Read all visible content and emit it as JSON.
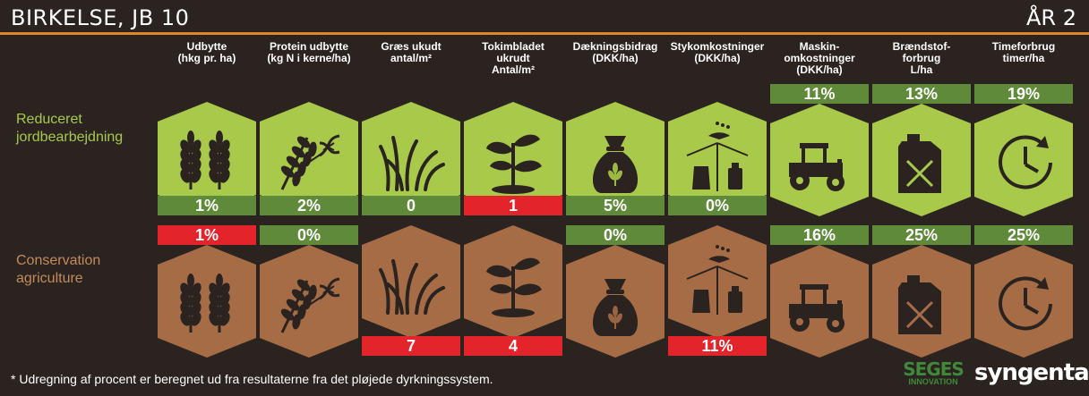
{
  "header": {
    "title": "BIRKELSE, JB 10",
    "year": "ÅR 2"
  },
  "columns": [
    {
      "l1": "Udbytte",
      "l2": "(hkg pr. ha)",
      "l3": "",
      "icon": "wheat-icon"
    },
    {
      "l1": "Protein udbytte",
      "l2": "(kg N i kerne/ha)",
      "l3": "",
      "icon": "wheat-dna-icon"
    },
    {
      "l1": "Græs ukudt",
      "l2": "antal/m²",
      "l3": "",
      "icon": "grass-icon"
    },
    {
      "l1": "Tokimbladet",
      "l2": "ukrudt",
      "l3": "Antal/m²",
      "icon": "seedling-icon"
    },
    {
      "l1": "Dækningsbidrag",
      "l2": "(DKK/ha)",
      "l3": "",
      "icon": "money-bag-icon"
    },
    {
      "l1": "Stykomkostninger",
      "l2": "(DKK/ha)",
      "l3": "",
      "icon": "inputs-cube-icon"
    },
    {
      "l1": "Maskin-",
      "l2": "omkostninger",
      "l3": "(DKK/ha)",
      "icon": "tractor-icon"
    },
    {
      "l1": "Brændstof-",
      "l2": "forbrug",
      "l3": "L/ha",
      "icon": "fuel-can-icon"
    },
    {
      "l1": "Timeforbrug",
      "l2": "timer/ha",
      "l3": "",
      "icon": "clock-icon"
    }
  ],
  "rows": [
    {
      "label1": "Reduceret",
      "label2": "jordbearbejdning",
      "values": [
        "1%",
        "2%",
        "0",
        "1",
        "5%",
        "0%",
        "11%",
        "13%",
        "19%"
      ],
      "status": [
        "neutral",
        "neutral",
        "neutral",
        "negative",
        "neutral",
        "neutral",
        "neutral",
        "neutral",
        "neutral"
      ]
    },
    {
      "label1": "Conservation",
      "label2": "agriculture",
      "values": [
        "1%",
        "0%",
        "7",
        "4",
        "0%",
        "11%",
        "16%",
        "25%",
        "25%"
      ],
      "status": [
        "negative",
        "neutral",
        "negative",
        "negative",
        "neutral",
        "negative",
        "neutral",
        "neutral",
        "neutral"
      ]
    }
  ],
  "colors": {
    "green_tile": "#a9c94a",
    "green_bar": "#5f8a3a",
    "brown_tile": "#a66c45",
    "red_bar": "#e3242b",
    "icon": "#2a2320",
    "accent_rule": "#e0862a"
  },
  "footer": {
    "note": "* Udregning af procent er beregnet ud fra resultaterne fra det pløjede dyrkningssystem.",
    "logo1_line1": "SEGES",
    "logo1_line2": "INNOVATION",
    "logo2": "syngenta"
  }
}
